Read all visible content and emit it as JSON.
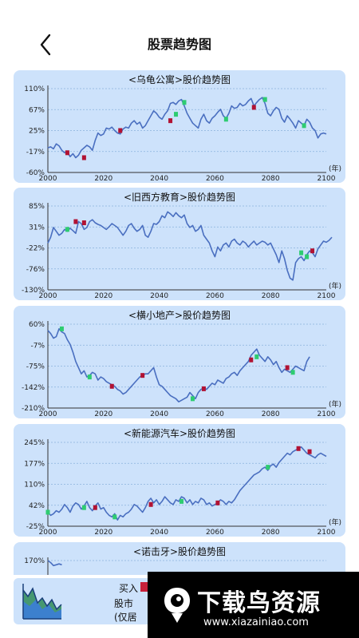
{
  "header": {
    "title": "股票趋势图",
    "back_icon": "chevron-left-icon"
  },
  "charts": [
    {
      "title": "<乌龟公寓>股价趋势图",
      "y_ticks": [
        "110%",
        "67%",
        "25%",
        "-17%",
        "-60%"
      ],
      "ylim": [
        -60,
        110
      ],
      "x_ticks": [
        "2000",
        "2020",
        "2040",
        "2060",
        "2080",
        "2100"
      ],
      "x_unit": "(年)",
      "values": [
        -10,
        -8,
        -12,
        -2,
        -6,
        -15,
        -20,
        -18,
        -28,
        -22,
        -30,
        -25,
        -15,
        -10,
        -5,
        -8,
        -15,
        5,
        20,
        15,
        18,
        30,
        28,
        32,
        25,
        20,
        18,
        28,
        32,
        30,
        40,
        45,
        38,
        42,
        30,
        35,
        45,
        55,
        65,
        60,
        52,
        48,
        58,
        65,
        80,
        82,
        78,
        85,
        88,
        75,
        60,
        50,
        40,
        35,
        30,
        48,
        58,
        45,
        40,
        50,
        55,
        62,
        68,
        55,
        50,
        60,
        75,
        70,
        72,
        80,
        75,
        78,
        85,
        90,
        75,
        82,
        88,
        92,
        80,
        60,
        55,
        65,
        72,
        68,
        50,
        42,
        55,
        48,
        40,
        30,
        45,
        40,
        35,
        48,
        42,
        30,
        25,
        10,
        18,
        20,
        18
      ],
      "buy": [
        [
          7,
          -20
        ],
        [
          13,
          -30
        ],
        [
          26,
          25
        ],
        [
          44,
          45
        ],
        [
          74,
          72
        ]
      ],
      "sell": [
        [
          46,
          58
        ],
        [
          49,
          82
        ],
        [
          64,
          48
        ],
        [
          78,
          88
        ],
        [
          92,
          35
        ]
      ]
    },
    {
      "title": "<旧西方教育>股价趋势图",
      "y_ticks": [
        "85%",
        "31%",
        "-22%",
        "-76%",
        "-130%"
      ],
      "ylim": [
        -130,
        85
      ],
      "x_ticks": [
        "2000",
        "2020",
        "2040",
        "2060",
        "2080",
        "2100"
      ],
      "x_unit": "(年)",
      "values": [
        -10,
        5,
        30,
        20,
        10,
        15,
        25,
        20,
        28,
        22,
        15,
        45,
        40,
        25,
        30,
        45,
        50,
        42,
        38,
        35,
        30,
        25,
        32,
        40,
        35,
        30,
        20,
        10,
        20,
        35,
        40,
        28,
        20,
        25,
        35,
        10,
        5,
        20,
        40,
        38,
        45,
        60,
        55,
        70,
        65,
        58,
        68,
        60,
        55,
        62,
        40,
        30,
        35,
        20,
        25,
        35,
        10,
        0,
        -10,
        -30,
        -45,
        -20,
        -30,
        -15,
        -10,
        -20,
        -5,
        0,
        -10,
        -15,
        -5,
        -10,
        -20,
        -12,
        -5,
        -15,
        -10,
        -5,
        -8,
        -15,
        -10,
        -25,
        -40,
        -60,
        -30,
        -50,
        -80,
        -100,
        -105,
        -60,
        -50,
        -45,
        -55,
        -40,
        -30,
        -35,
        -45,
        -25,
        -15,
        -5,
        -8,
        -3,
        5
      ],
      "buy": [
        [
          10,
          45
        ],
        [
          13,
          42
        ],
        [
          95,
          -30
        ]
      ],
      "sell": [
        [
          7,
          25
        ],
        [
          91,
          -35
        ],
        [
          93,
          -45
        ]
      ]
    },
    {
      "title": "<横小地产>股价趋势图",
      "y_ticks": [
        "60%",
        "-7%",
        "-75%",
        "-142%",
        "-210%"
      ],
      "ylim": [
        -210,
        60
      ],
      "x_ticks": [
        "2000",
        "2020",
        "2040",
        "2060",
        "2080",
        "2100"
      ],
      "x_unit": "(年)",
      "values": [
        40,
        30,
        15,
        20,
        45,
        35,
        30,
        10,
        -5,
        -30,
        -60,
        -80,
        -100,
        -90,
        -110,
        -105,
        -95,
        -100,
        -120,
        -110,
        -115,
        -125,
        -130,
        -135,
        -140,
        -150,
        -155,
        -165,
        -160,
        -150,
        -140,
        -130,
        -120,
        -110,
        -105,
        -100,
        -100,
        -90,
        -80,
        -110,
        -135,
        -140,
        -150,
        -160,
        -170,
        -175,
        -180,
        -190,
        -185,
        -180,
        -175,
        -160,
        -170,
        -180,
        -160,
        -150,
        -145,
        -150,
        -140,
        -130,
        -135,
        -120,
        -125,
        -130,
        -115,
        -110,
        -100,
        -95,
        -105,
        -90,
        -80,
        -70,
        -60,
        -40,
        -30,
        -20,
        -40,
        -50,
        -60,
        -45,
        -55,
        -70,
        -60,
        -80,
        -95,
        -85,
        -90,
        -95,
        -85,
        -75,
        -80,
        -85,
        -90,
        -60,
        -45
      ],
      "buy": [
        [
          23,
          -140
        ],
        [
          34,
          -105
        ],
        [
          56,
          -148
        ],
        [
          73,
          -55
        ],
        [
          86,
          -80
        ]
      ],
      "sell": [
        [
          5,
          45
        ],
        [
          15,
          -110
        ],
        [
          52,
          -180
        ],
        [
          75,
          -45
        ],
        [
          88,
          -95
        ]
      ]
    },
    {
      "title": "<新能源汽车>股价趋势图",
      "y_ticks": [
        "245%",
        "177%",
        "110%",
        "42%",
        "-25%"
      ],
      "ylim": [
        -25,
        245
      ],
      "x_ticks": [
        "2000",
        "2020",
        "2040",
        "2060",
        "2080",
        "2100"
      ],
      "x_unit": "(年)",
      "values": [
        20,
        10,
        15,
        25,
        20,
        30,
        45,
        35,
        20,
        40,
        50,
        45,
        30,
        40,
        55,
        35,
        25,
        40,
        50,
        30,
        35,
        20,
        10,
        5,
        15,
        -5,
        10,
        5,
        15,
        20,
        30,
        45,
        40,
        30,
        20,
        35,
        55,
        65,
        50,
        60,
        45,
        55,
        70,
        60,
        50,
        45,
        60,
        55,
        70,
        65,
        50,
        60,
        45,
        55,
        50,
        65,
        60,
        45,
        50,
        40,
        45,
        50,
        60,
        55,
        45,
        55,
        50,
        60,
        75,
        90,
        100,
        110,
        120,
        130,
        140,
        145,
        150,
        160,
        165,
        155,
        170,
        175,
        165,
        180,
        190,
        200,
        210,
        205,
        215,
        220,
        225,
        230,
        220,
        210,
        205,
        200,
        195,
        205,
        210,
        205,
        200
      ],
      "buy": [
        [
          17,
          35
        ],
        [
          37,
          45
        ],
        [
          61,
          50
        ],
        [
          90,
          225
        ],
        [
          94,
          215
        ]
      ],
      "sell": [
        [
          0,
          20
        ],
        [
          13,
          35
        ],
        [
          24,
          5
        ],
        [
          48,
          55
        ],
        [
          79,
          165
        ]
      ]
    },
    {
      "title": "<诺击牙>股价趋势图",
      "y_ticks": [
        "170%"
      ],
      "ylim": [
        -30,
        170
      ],
      "x_ticks": [],
      "x_unit": "",
      "values": [
        170,
        165,
        158,
        160,
        162,
        160
      ],
      "buy": [],
      "sell": []
    }
  ],
  "legend": {
    "buy_label": "买入",
    "note_line1": "股市",
    "note_line2": "(仅居",
    "buy_color": "#c8203a",
    "sell_color": "#2ecc71"
  },
  "colors": {
    "line": "#4a6fc0",
    "card_bg": "#cde2fb",
    "buy": "#b11233",
    "sell": "#2ecc71",
    "grid": "#8ab2dc"
  },
  "watermark": {
    "big_text": "下载鸟资源",
    "small_text": "www.xiazainiao.com"
  }
}
